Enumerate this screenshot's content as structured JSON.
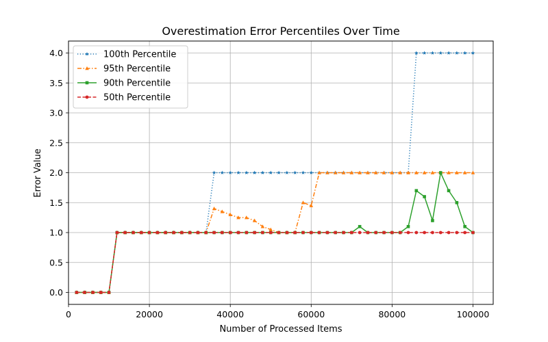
{
  "chart_data": {
    "type": "line",
    "title": "Overestimation Error Percentiles Over Time",
    "xlabel": "Number of Processed Items",
    "ylabel": "Error Value",
    "xlim": [
      0,
      105000
    ],
    "ylim": [
      -0.2,
      4.2
    ],
    "xticks": [
      0,
      20000,
      40000,
      60000,
      80000,
      100000
    ],
    "yticks": [
      0.0,
      0.5,
      1.0,
      1.5,
      2.0,
      2.5,
      3.0,
      3.5,
      4.0
    ],
    "ytick_labels": [
      "0.0",
      "0.5",
      "1.0",
      "1.5",
      "2.0",
      "2.5",
      "3.0",
      "3.5",
      "4.0"
    ],
    "grid": true,
    "legend_position": "upper-left",
    "x": [
      2000,
      4000,
      6000,
      8000,
      10000,
      12000,
      14000,
      16000,
      18000,
      20000,
      22000,
      24000,
      26000,
      28000,
      30000,
      32000,
      34000,
      36000,
      38000,
      40000,
      42000,
      44000,
      46000,
      48000,
      50000,
      52000,
      54000,
      56000,
      58000,
      60000,
      62000,
      64000,
      66000,
      68000,
      70000,
      72000,
      74000,
      76000,
      78000,
      80000,
      82000,
      84000,
      86000,
      88000,
      90000,
      92000,
      94000,
      96000,
      98000,
      100000
    ],
    "series": [
      {
        "name": "100th Percentile",
        "color": "#1f77b4",
        "linestyle": "dotted",
        "marker": "star",
        "values": [
          0,
          0,
          0,
          0,
          0,
          1,
          1,
          1,
          1,
          1,
          1,
          1,
          1,
          1,
          1,
          1,
          1,
          2,
          2,
          2,
          2,
          2,
          2,
          2,
          2,
          2,
          2,
          2,
          2,
          2,
          2,
          2,
          2,
          2,
          2,
          2,
          2,
          2,
          2,
          2,
          2,
          2,
          4,
          4,
          4,
          4,
          4,
          4,
          4,
          4
        ]
      },
      {
        "name": "95th Percentile",
        "color": "#ff7f0e",
        "linestyle": "dashdot",
        "marker": "triangle",
        "values": [
          0,
          0,
          0,
          0,
          0,
          1,
          1,
          1,
          1,
          1,
          1,
          1,
          1,
          1,
          1,
          1,
          1,
          1.4,
          1.35,
          1.3,
          1.25,
          1.25,
          1.2,
          1.1,
          1.05,
          1,
          1,
          1,
          1.5,
          1.45,
          2,
          2,
          2,
          2,
          2,
          2,
          2,
          2,
          2,
          2,
          2,
          2,
          2,
          2,
          2,
          2,
          2,
          2,
          2,
          2
        ]
      },
      {
        "name": "90th Percentile",
        "color": "#2ca02c",
        "linestyle": "solid",
        "marker": "square",
        "values": [
          0,
          0,
          0,
          0,
          0,
          1,
          1,
          1,
          1,
          1,
          1,
          1,
          1,
          1,
          1,
          1,
          1,
          1,
          1,
          1,
          1,
          1,
          1,
          1,
          1,
          1,
          1,
          1,
          1,
          1,
          1,
          1,
          1,
          1,
          1,
          1.1,
          1,
          1,
          1,
          1,
          1,
          1.1,
          1.7,
          1.6,
          1.2,
          2,
          1.7,
          1.5,
          1.1,
          1
        ]
      },
      {
        "name": "50th Percentile",
        "color": "#d62728",
        "linestyle": "dashed",
        "marker": "circle",
        "values": [
          0,
          0,
          0,
          0,
          0,
          1,
          1,
          1,
          1,
          1,
          1,
          1,
          1,
          1,
          1,
          1,
          1,
          1,
          1,
          1,
          1,
          1,
          1,
          1,
          1,
          1,
          1,
          1,
          1,
          1,
          1,
          1,
          1,
          1,
          1,
          1,
          1,
          1,
          1,
          1,
          1,
          1,
          1,
          1,
          1,
          1,
          1,
          1,
          1,
          1
        ]
      }
    ]
  }
}
